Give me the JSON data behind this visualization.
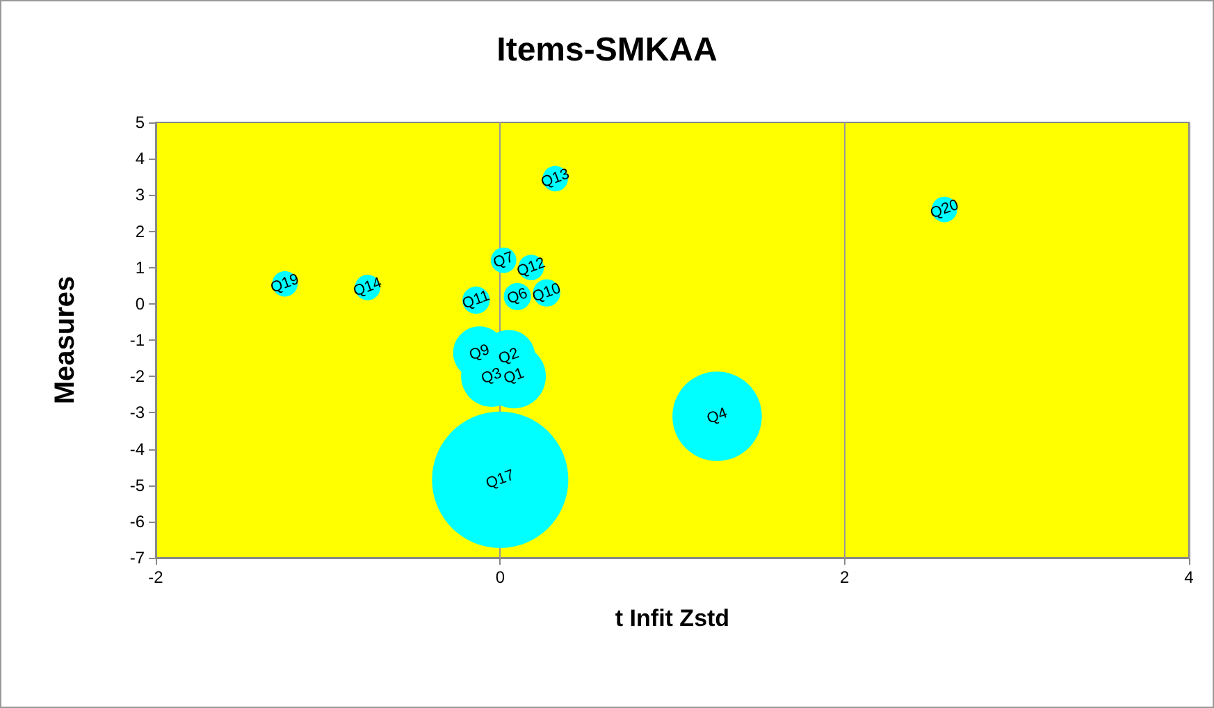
{
  "chart_data": {
    "type": "bubble",
    "title": "Items-SMKAA",
    "xlabel": "t Infit Zstd",
    "ylabel": "Measures",
    "xlim": [
      -2,
      4
    ],
    "xticks": [
      -2,
      0,
      2,
      4
    ],
    "ylim": [
      -7,
      5
    ],
    "yticks": [
      -7,
      -6,
      -5,
      -4,
      -3,
      -2,
      -1,
      0,
      1,
      2,
      3,
      4,
      5
    ],
    "grid": "x",
    "series": [
      {
        "color": "#00ffff",
        "x": [
          -1.25,
          -0.77,
          0.32,
          2.58,
          0.02,
          0.18,
          -0.14,
          0.1,
          0.27,
          -0.12,
          0.05,
          -0.05,
          0.08,
          1.26,
          0.0
        ],
        "values": [
          0.55,
          0.45,
          3.45,
          2.6,
          1.2,
          1.0,
          0.1,
          0.2,
          0.3,
          -1.35,
          -1.45,
          -2.0,
          -2.0,
          -3.1,
          -4.85
        ],
        "sizes": [
          0.035,
          0.035,
          0.035,
          0.035,
          0.035,
          0.035,
          0.04,
          0.04,
          0.04,
          0.15,
          0.15,
          0.2,
          0.22,
          0.43,
          1
        ]
      }
    ],
    "annotations": [
      {
        "text": "Q19",
        "x": -1.25,
        "y": 0.55
      },
      {
        "text": "Q14",
        "x": -0.77,
        "y": 0.45
      },
      {
        "text": "Q13",
        "x": 0.32,
        "y": 3.45
      },
      {
        "text": "Q20",
        "x": 2.58,
        "y": 2.6
      },
      {
        "text": "Q7",
        "x": 0.02,
        "y": 1.2
      },
      {
        "text": "Q12",
        "x": 0.18,
        "y": 1.0
      },
      {
        "text": "Q11",
        "x": -0.14,
        "y": 0.1
      },
      {
        "text": "Q6",
        "x": 0.1,
        "y": 0.2
      },
      {
        "text": "Q10",
        "x": 0.27,
        "y": 0.3
      },
      {
        "text": "Q9",
        "x": -0.12,
        "y": -1.35
      },
      {
        "text": "Q2",
        "x": 0.05,
        "y": -1.45
      },
      {
        "text": "Q3",
        "x": -0.05,
        "y": -2.0
      },
      {
        "text": "Q1",
        "x": 0.08,
        "y": -2.0
      },
      {
        "text": "Q4",
        "x": 1.26,
        "y": -3.1
      },
      {
        "text": "Q17",
        "x": 0.0,
        "y": -4.85
      }
    ]
  }
}
